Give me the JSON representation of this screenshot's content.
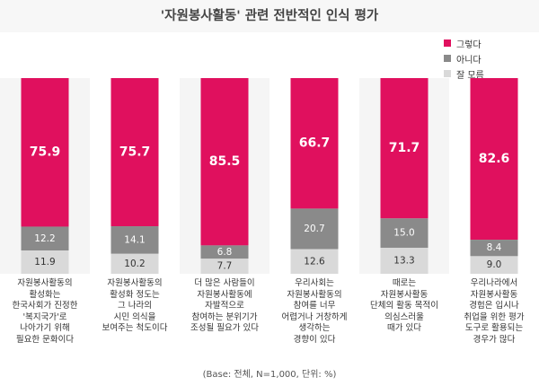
{
  "title": "'자원봉사활동' 관련 전반적인 인식 평가",
  "note": "(Base: 전체, N=1,000, 단위: %)",
  "colors": {
    "yes": "#e0105e",
    "no": "#8a8a8a",
    "unknown": "#d9d9d9",
    "band": "#f5f5f5"
  },
  "chart_data": {
    "type": "bar",
    "stacked": true,
    "categories": [
      [
        "자원봉사활동의",
        "활성화는",
        "한국사회가 진정한",
        "'복지국가'로",
        "나아가기 위해",
        "필요한 문화이다"
      ],
      [
        "자원봉사활동의",
        "활성화 정도는",
        "그 나라의",
        "시민 의식을",
        "보여주는 척도이다"
      ],
      [
        "더 많은 사람들이",
        "자원봉사활동에",
        "자발적으로",
        "참여하는 분위기가",
        "조성될 필요가 있다"
      ],
      [
        "우리사회는",
        "자원봉사활동의",
        "참여를 너무",
        "어렵거나 거창하게",
        "생각하는",
        "경향이 있다"
      ],
      [
        "때로는",
        "자원봉사활동",
        "단체의 활동 목적이",
        "의심스러울",
        "때가 있다"
      ],
      [
        "우리나라에서",
        "자원봉사활동",
        "경험은 입시나",
        "취업을 위한 평가",
        "도구로 활용되는",
        "경우가 많다"
      ]
    ],
    "series": [
      {
        "name": "그렇다",
        "values": [
          75.9,
          75.7,
          85.5,
          66.7,
          71.7,
          82.6
        ],
        "labels": [
          "75.9",
          "75.7",
          "85.5",
          "66.7",
          "71.7",
          "82.6"
        ]
      },
      {
        "name": "아니다",
        "values": [
          12.2,
          14.1,
          6.8,
          20.7,
          15.0,
          8.4
        ],
        "labels": [
          "12.2",
          "14.1",
          "6.8",
          "20.7",
          "15.0",
          "8.4"
        ]
      },
      {
        "name": "잘 모름",
        "values": [
          11.9,
          10.2,
          7.7,
          12.6,
          13.3,
          9.0
        ],
        "labels": [
          "11.9",
          "10.2",
          "7.7",
          "12.6",
          "13.3",
          "9.0"
        ]
      }
    ],
    "ylim": [
      0,
      100
    ],
    "legend": "top-right",
    "grid": false
  }
}
